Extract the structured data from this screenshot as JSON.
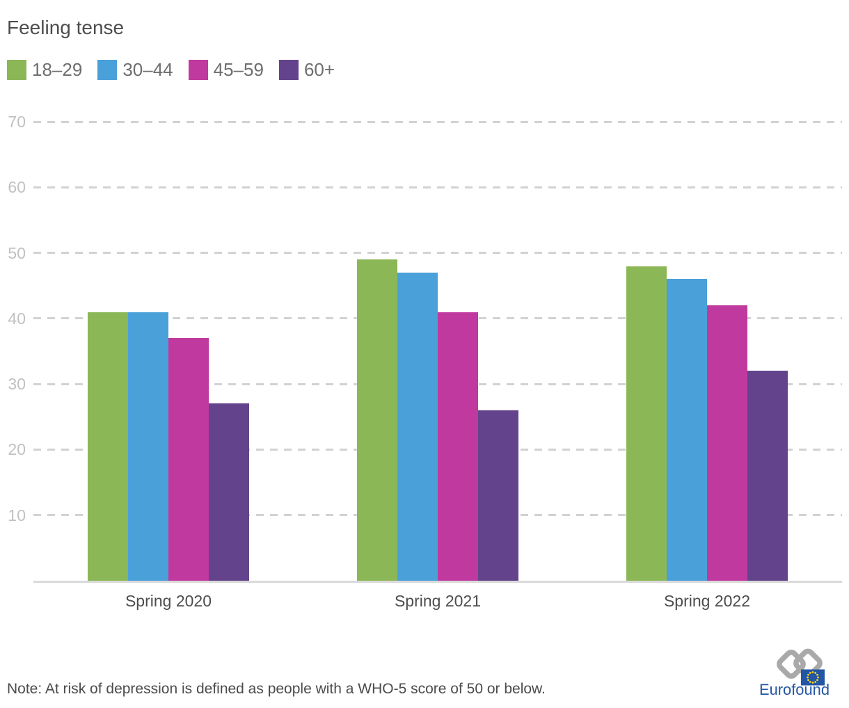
{
  "title": "Feeling tense",
  "note": "Note: At risk of depression is defined as people with a WHO-5 score of 50 or below.",
  "logo": {
    "text": "Eurofound"
  },
  "colors": {
    "age_18_29": "#8bb756",
    "age_30_44": "#4aa0d9",
    "age_45_59": "#c0399f",
    "age_60_plus": "#63448c",
    "gridline": "#d2d2d2",
    "axis_line": "#dadada",
    "y_tick_label": "#c1c1c1",
    "category_label": "#4d4d4d",
    "title_text": "#4d4d4d",
    "legend_text": "#6e6e6e",
    "note_text": "#4b4b4b",
    "logo_blue": "#2456a4",
    "eu_flag_blue": "#2255a4",
    "eu_star_yellow": "#ffd617",
    "logo_mark_gray": "#a9a9a9"
  },
  "chart_data": {
    "type": "bar",
    "title": "Feeling tense",
    "categories": [
      "Spring 2020",
      "Spring 2021",
      "Spring 2022"
    ],
    "series": [
      {
        "name": "18–29",
        "color": "#8bb756",
        "values": [
          41,
          49,
          48
        ]
      },
      {
        "name": "30–44",
        "color": "#4aa0d9",
        "values": [
          41,
          47,
          46
        ]
      },
      {
        "name": "45–59",
        "color": "#c0399f",
        "values": [
          37,
          41,
          42
        ]
      },
      {
        "name": "60+",
        "color": "#63448c",
        "values": [
          27,
          26,
          32
        ]
      }
    ],
    "xlabel": "",
    "ylabel": "",
    "yticks": [
      10,
      20,
      30,
      40,
      50,
      60,
      70
    ],
    "ylim": [
      0,
      75
    ],
    "grid": "horizontal-dashed",
    "legend_position": "top-left"
  }
}
